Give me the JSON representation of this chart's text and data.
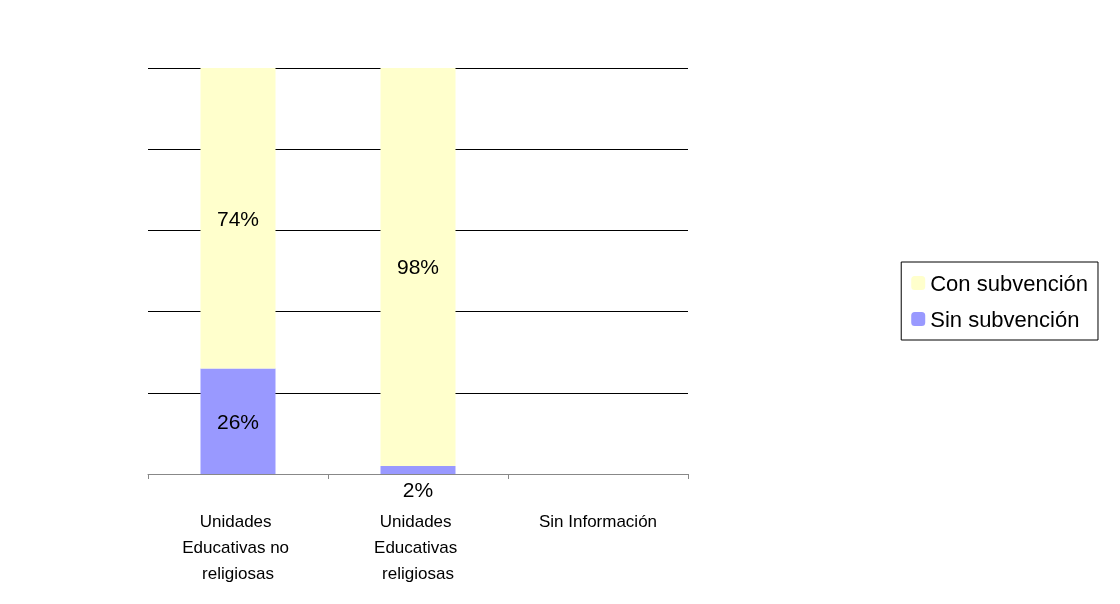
{
  "chart_data": {
    "type": "bar",
    "stacked": true,
    "categories": [
      "Unidades Educativas no religiosas",
      "Unidades Educativas religiosas",
      "Sin Información"
    ],
    "series": [
      {
        "name": "Sin subvención",
        "color": "#9999ff",
        "values": [
          26,
          2,
          0
        ],
        "value_labels": [
          "26%",
          "2%",
          null
        ]
      },
      {
        "name": "Con subvención",
        "color": "#ffffcc",
        "values": [
          74,
          98,
          0
        ],
        "value_labels": [
          "74%",
          "98%",
          null
        ]
      }
    ],
    "grid": "y",
    "legend": "right",
    "tick_labels": "x"
  }
}
